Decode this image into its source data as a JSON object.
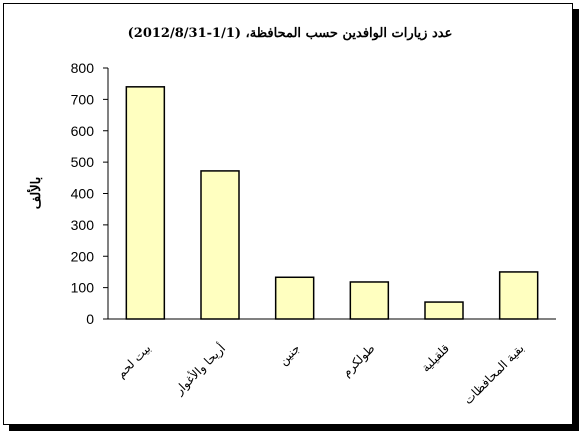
{
  "chart_data": {
    "type": "bar",
    "title": "عدد زيارات الوافدين حسب المحافظة، (1/1-2012/8/31)",
    "ylabel": "بالألف",
    "xlabel": "",
    "ylim": [
      0,
      800
    ],
    "yticks": [
      "0",
      "100",
      "200",
      "300",
      "400",
      "500",
      "600",
      "700",
      "800"
    ],
    "categories": [
      "بيت لحم",
      "أريحا والأغوار",
      "جنين",
      "طولكرم",
      "قلقيلية",
      "بقية المحافظات"
    ],
    "values": [
      740,
      472,
      133,
      118,
      54,
      150
    ],
    "colors": {
      "bar_fill": "#FFFFC0",
      "bar_stroke": "#000000"
    },
    "grid": false,
    "legend": "none"
  }
}
